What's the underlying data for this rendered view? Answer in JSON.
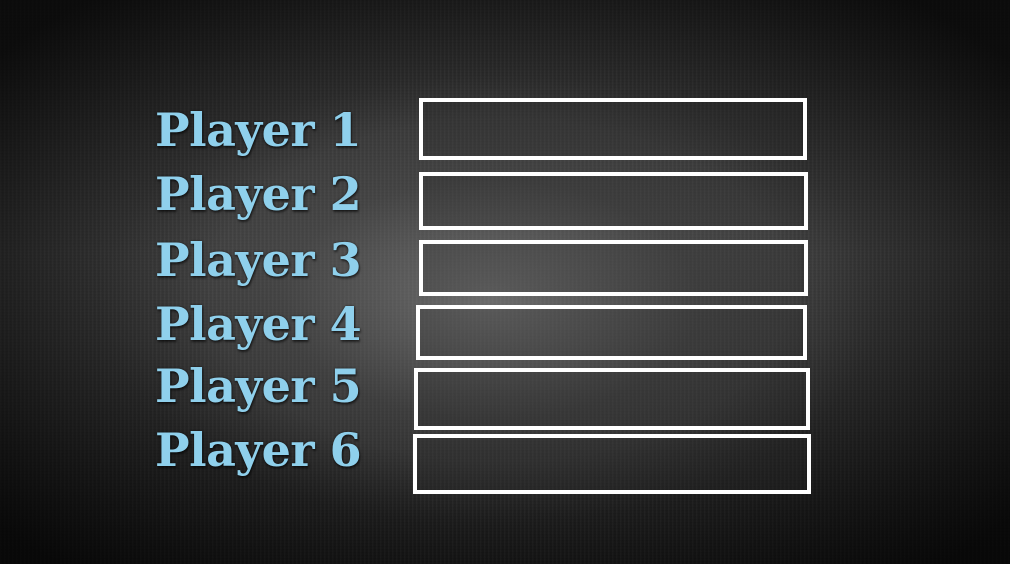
{
  "players": [
    {
      "label": "Player  1"
    },
    {
      "label": "Player  2"
    },
    {
      "label": "Player  3"
    },
    {
      "label": "Player  4"
    },
    {
      "label": "Player  5"
    },
    {
      "label": "Player 6"
    }
  ]
}
